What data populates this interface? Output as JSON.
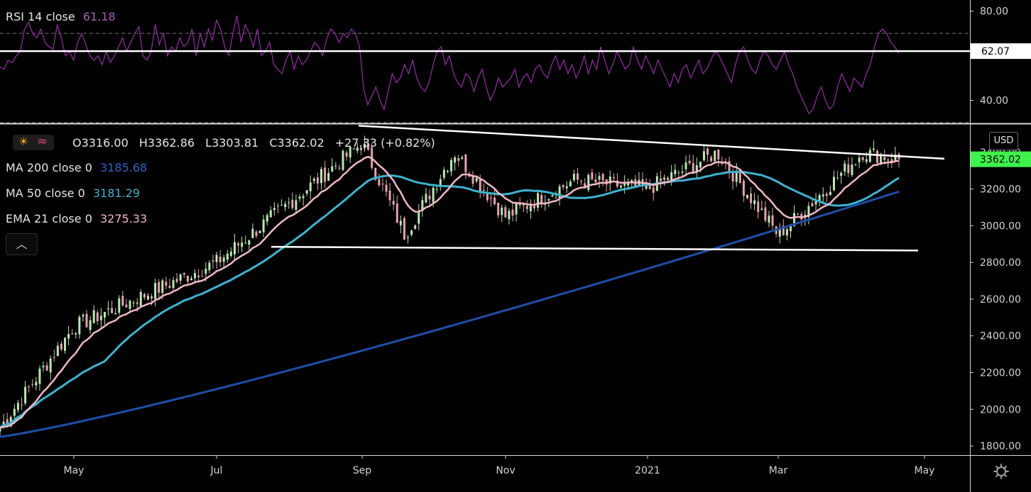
{
  "rsi_header": {
    "title": "RSI 14 close",
    "value": "61.18"
  },
  "ohlc": {
    "open": "O3316.00",
    "high": "H3362.86",
    "low": "L3303.81",
    "close": "C3362.02",
    "change": "+27.33 (+0.82%)"
  },
  "indicators": [
    {
      "label": "MA 200 close 0",
      "value": "3185.68",
      "color": "#1e4fa8"
    },
    {
      "label": "MA 50 close 0",
      "value": "3181.29",
      "color": "#3cb4d0"
    },
    {
      "label": "EMA 21 close 0",
      "value": "3275.33",
      "color": "#f2b8c6"
    }
  ],
  "currency": "USD",
  "colors": {
    "rsi_line": "#8e2a9e",
    "up": "#b8e8b0",
    "down": "#e8a1ae",
    "last_price_bg": "#3df24a",
    "rsi_value": "#a85fb8"
  },
  "chart_data": [
    {
      "type": "line",
      "title": "RSI 14 close",
      "ylim": [
        30,
        85
      ],
      "yticks": [
        "80.00",
        "40.00"
      ],
      "bands": [
        70,
        30
      ],
      "horizontal_line": {
        "value": 62.07,
        "label": "62.07"
      },
      "last_value": 61.18,
      "values": [
        55,
        54,
        58,
        57,
        60,
        62,
        72,
        75,
        70,
        68,
        72,
        66,
        64,
        63,
        74,
        68,
        60,
        62,
        58,
        66,
        70,
        65,
        60,
        58,
        60,
        56,
        62,
        57,
        60,
        64,
        68,
        62,
        66,
        70,
        73,
        60,
        58,
        62,
        74,
        65,
        70,
        60,
        64,
        62,
        68,
        64,
        66,
        72,
        60,
        70,
        64,
        72,
        67,
        76,
        72,
        64,
        60,
        70,
        78,
        66,
        74,
        70,
        64,
        72,
        60,
        62,
        66,
        56,
        54,
        52,
        58,
        62,
        54,
        60,
        56,
        58,
        62,
        66,
        64,
        60,
        68,
        72,
        70,
        66,
        70,
        68,
        72,
        70,
        64,
        45,
        38,
        42,
        46,
        40,
        36,
        44,
        52,
        48,
        50,
        56,
        52,
        58,
        50,
        46,
        44,
        48,
        56,
        62,
        64,
        56,
        60,
        52,
        48,
        46,
        52,
        50,
        44,
        50,
        54,
        46,
        40,
        44,
        50,
        46,
        48,
        50,
        54,
        46,
        50,
        52,
        48,
        54,
        56,
        52,
        50,
        56,
        60,
        54,
        58,
        52,
        56,
        50,
        54,
        60,
        52,
        58,
        54,
        64,
        58,
        52,
        56,
        62,
        58,
        54,
        56,
        64,
        58,
        54,
        60,
        56,
        52,
        58,
        54,
        50,
        46,
        52,
        48,
        54,
        56,
        50,
        54,
        58,
        52,
        54,
        58,
        62,
        60,
        56,
        52,
        48,
        56,
        62,
        64,
        58,
        54,
        52,
        58,
        62,
        60,
        56,
        54,
        58,
        62,
        56,
        52,
        46,
        42,
        38,
        34,
        36,
        42,
        46,
        40,
        36,
        38,
        46,
        52,
        48,
        44,
        50,
        48,
        46,
        52,
        56,
        64,
        70,
        72,
        70,
        66,
        64,
        61
      ],
      "x_labels": [
        "May",
        "Jul",
        "Sep",
        "Nov",
        "2021",
        "Mar",
        "May"
      ]
    },
    {
      "type": "candlestick",
      "title": "",
      "ylim": [
        1750,
        3550
      ],
      "y_ticks": [
        "1800.00",
        "2000.00",
        "2200.00",
        "2400.00",
        "2600.00",
        "2800.00",
        "3000.00",
        "3200.00",
        "3400.00"
      ],
      "x_labels": [
        "May",
        "Jul",
        "Sep",
        "Nov",
        "2021",
        "Mar",
        "May"
      ],
      "last_price": {
        "value": 3362.02,
        "label": "3362.02"
      },
      "ema21_last": 3275.33,
      "ma50_last": 3181.29,
      "ma200_last": 3185.68,
      "trendlines": [
        {
          "name": "upper",
          "from": [
            "Sep",
            3545
          ],
          "to": [
            "May",
            3365
          ]
        },
        {
          "name": "lower",
          "from": [
            "Jul",
            2885
          ],
          "to": [
            "May",
            2865
          ]
        }
      ],
      "anchor_points": [
        {
          "x": "start",
          "close": 1900
        },
        {
          "x": "May",
          "close": 2450
        },
        {
          "x": "Jul",
          "close": 2800
        },
        {
          "x": "Sep",
          "close": 3450
        },
        {
          "x": "Sep+",
          "close": 2950
        },
        {
          "x": "Oct",
          "close": 3400
        },
        {
          "x": "Nov",
          "close": 3050
        },
        {
          "x": "Dec",
          "close": 3250
        },
        {
          "x": "2021",
          "close": 3200
        },
        {
          "x": "Feb",
          "close": 3400
        },
        {
          "x": "Mar",
          "close": 2950
        },
        {
          "x": "Mar+",
          "close": 3150
        },
        {
          "x": "Apr",
          "close": 3400
        },
        {
          "x": "end",
          "close": 3362.02
        }
      ]
    }
  ]
}
